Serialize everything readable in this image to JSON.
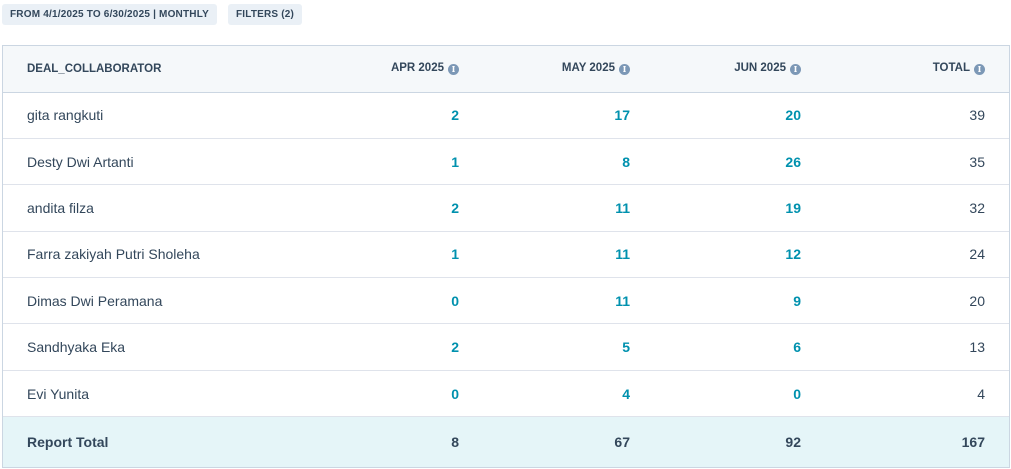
{
  "filters": {
    "date_range": "FROM 4/1/2025 TO 6/30/2025 | MONTHLY",
    "filters": "FILTERS (2)"
  },
  "table": {
    "headers": [
      "DEAL_COLLABORATOR",
      "APR 2025",
      "MAY 2025",
      "JUN 2025",
      "TOTAL"
    ],
    "rows": [
      {
        "name": "gita rangkuti",
        "apr": "2",
        "may": "17",
        "jun": "20",
        "total": "39"
      },
      {
        "name": "Desty Dwi Artanti",
        "apr": "1",
        "may": "8",
        "jun": "26",
        "total": "35"
      },
      {
        "name": "andita filza",
        "apr": "2",
        "may": "11",
        "jun": "19",
        "total": "32"
      },
      {
        "name": "Farra zakiyah Putri Sholeha",
        "apr": "1",
        "may": "11",
        "jun": "12",
        "total": "24"
      },
      {
        "name": "Dimas Dwi Peramana",
        "apr": "0",
        "may": "11",
        "jun": "9",
        "total": "20"
      },
      {
        "name": "Sandhyaka Eka",
        "apr": "2",
        "may": "5",
        "jun": "6",
        "total": "13"
      },
      {
        "name": "Evi Yunita",
        "apr": "0",
        "may": "4",
        "jun": "0",
        "total": "4"
      }
    ],
    "report_total": {
      "label": "Report Total",
      "apr": "8",
      "may": "67",
      "jun": "92",
      "total": "167"
    }
  },
  "icons": {
    "info": "info-circle-icon"
  },
  "colors": {
    "link": "#0091ae",
    "text": "#33475b",
    "header_bg": "#f5f8fa",
    "total_bg": "#e5f5f8",
    "chip_bg": "#eaf0f6"
  }
}
